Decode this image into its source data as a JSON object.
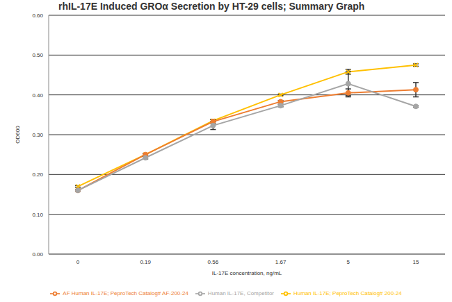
{
  "chart_data": {
    "type": "line",
    "title": "rhIL-17E Induced GROα Secretion by HT-29 cells; Summary Graph",
    "x_label": "IL-17E concentration, ng/mL",
    "y_label": "OD600",
    "categories": [
      "0",
      "0.19",
      "0.56",
      "1.67",
      "5",
      "15"
    ],
    "ylim": [
      0,
      0.6
    ],
    "yticks": [
      {
        "value": 0,
        "label": "0.00"
      },
      {
        "value": 0.1,
        "label": "0.10"
      },
      {
        "value": 0.2,
        "label": "0.20"
      },
      {
        "value": 0.3,
        "label": "0.30"
      },
      {
        "value": 0.4,
        "label": "0.40"
      },
      {
        "value": 0.5,
        "label": "0.50"
      },
      {
        "value": 0.6,
        "label": "0.60"
      }
    ],
    "grid": true,
    "legend": "bottom",
    "series": [
      {
        "name": "Human IL-17E; PeproTech Catalog# 200-24",
        "color": "#FFC000",
        "marker": "x",
        "values": [
          0.17,
          0.25,
          0.335,
          0.4,
          0.458,
          0.475
        ],
        "errors": [
          0.002,
          0.003,
          0.003,
          0.002,
          0.006,
          0.003
        ]
      },
      {
        "name": "AF Human IL-17E; PeproTech Catalog# AF-200-24",
        "color": "#ED7D31",
        "marker": "circle",
        "values": [
          0.16,
          0.25,
          0.333,
          0.383,
          0.405,
          0.413
        ],
        "errors": [
          0.002,
          0.003,
          0.005,
          0.003,
          0.01,
          0.018
        ]
      },
      {
        "name": "Human IL-17E, Competitor",
        "color": "#A5A5A5",
        "marker": "circle",
        "values": [
          0.16,
          0.242,
          0.323,
          0.373,
          0.428,
          0.371
        ],
        "errors": [
          0.002,
          0.003,
          0.01,
          0.003,
          0.03,
          0.002
        ]
      }
    ]
  }
}
